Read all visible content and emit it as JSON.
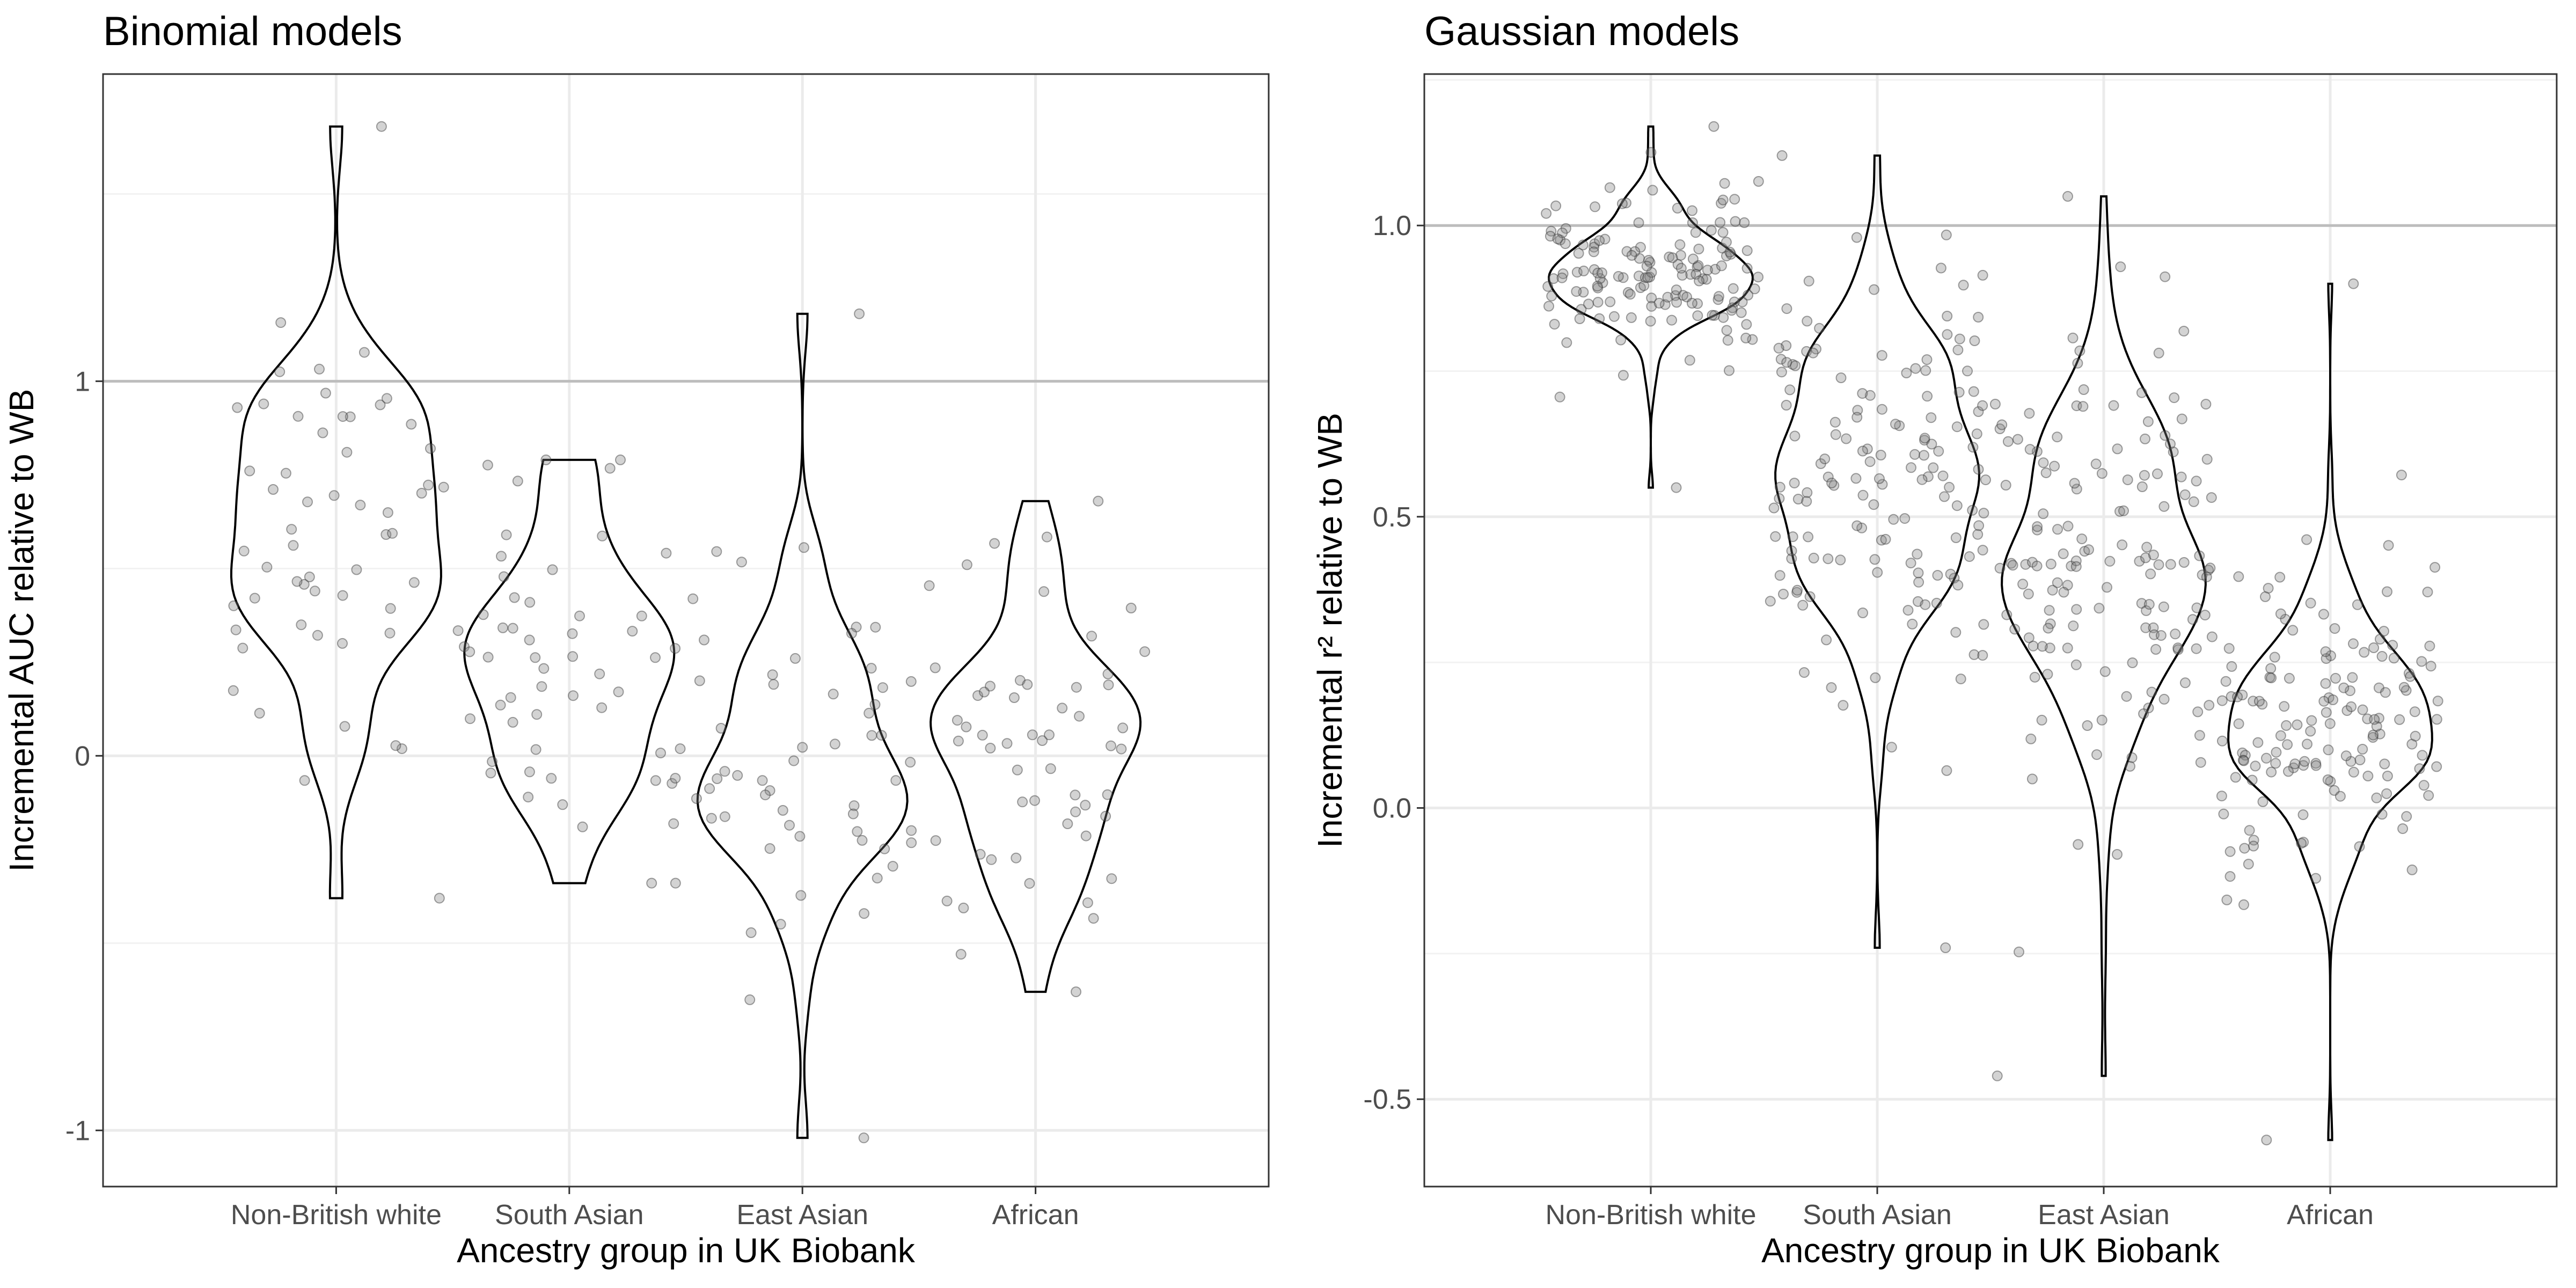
{
  "chart_data": [
    {
      "type": "violin",
      "title": "Binomial models",
      "xlabel": "Ancestry group in UK Biobank",
      "ylabel": "Incremental AUC relative to WB",
      "ylim": [
        -1.15,
        1.82
      ],
      "y_ticks": [
        -1,
        0,
        1
      ],
      "y_tick_labels": [
        "-1",
        "0",
        "1"
      ],
      "reference_line": 1,
      "grid": true,
      "categories": [
        "Non-British white",
        "South Asian",
        "East Asian",
        "African"
      ],
      "groups": [
        {
          "category": "Non-British white",
          "n": 56,
          "center": 0.58,
          "spread": 0.28,
          "min": -0.38,
          "max": 1.68
        },
        {
          "category": "South Asian",
          "n": 56,
          "center": 0.2,
          "spread": 0.28,
          "min": -0.34,
          "max": 0.79
        },
        {
          "category": "East Asian",
          "n": 56,
          "center": -0.02,
          "spread": 0.25,
          "min": -1.02,
          "max": 1.18
        },
        {
          "category": "African",
          "n": 56,
          "center": 0.02,
          "spread": 0.25,
          "min": -0.63,
          "max": 0.68
        }
      ]
    },
    {
      "type": "violin",
      "title": "Gaussian models",
      "xlabel": "Ancestry group in UK Biobank",
      "ylabel": "Incremental r² relative to WB",
      "ylim": [
        -0.65,
        1.26
      ],
      "y_ticks": [
        -0.5,
        0.0,
        0.5,
        1.0
      ],
      "y_tick_labels": [
        "-0.5",
        "0.0",
        "0.5",
        "1.0"
      ],
      "reference_line": 1.0,
      "grid": true,
      "categories": [
        "Non-British white",
        "South Asian",
        "East Asian",
        "African"
      ],
      "groups": [
        {
          "category": "Non-British white",
          "n": 150,
          "center": 0.92,
          "spread": 0.07,
          "min": 0.55,
          "max": 1.17
        },
        {
          "category": "South Asian",
          "n": 150,
          "center": 0.58,
          "spread": 0.17,
          "min": -0.24,
          "max": 1.12
        },
        {
          "category": "East Asian",
          "n": 150,
          "center": 0.43,
          "spread": 0.22,
          "min": -0.46,
          "max": 1.05
        },
        {
          "category": "African",
          "n": 150,
          "center": 0.14,
          "spread": 0.15,
          "min": -0.57,
          "max": 0.9
        }
      ]
    }
  ]
}
